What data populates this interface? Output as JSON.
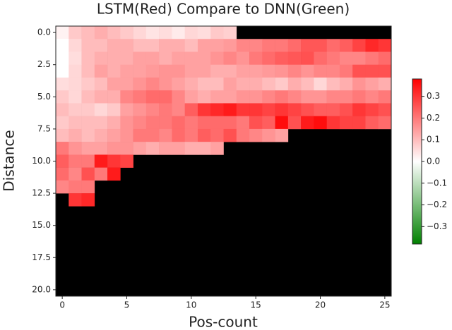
{
  "chart_data": {
    "type": "heatmap",
    "title": "LSTM(Red) Compare to DNN(Green)",
    "xlabel": "Pos-count",
    "ylabel": "Distance",
    "x": [
      0,
      1,
      2,
      3,
      4,
      5,
      6,
      7,
      8,
      9,
      10,
      11,
      12,
      13,
      14,
      15,
      16,
      17,
      18,
      19,
      20,
      21,
      22,
      23,
      24,
      25
    ],
    "y": [
      0,
      1,
      2,
      3,
      4,
      5,
      6,
      7,
      8,
      9,
      10,
      11,
      12,
      13,
      14,
      15,
      16,
      17,
      18,
      19,
      20
    ],
    "xlim": [
      -0.5,
      25.5
    ],
    "ylim": [
      20.5,
      -0.5
    ],
    "xticks": [
      0,
      5,
      10,
      15,
      20,
      25
    ],
    "yticks": [
      {
        "value": 0,
        "label": "0.0"
      },
      2.5,
      {
        "value": 5,
        "label": "5.0"
      },
      7.5,
      {
        "value": 10,
        "label": "10.0"
      },
      12.5,
      {
        "value": 15,
        "label": "15.0"
      },
      17.5,
      {
        "value": 20,
        "label": "20.0"
      }
    ],
    "clim": [
      -0.38,
      0.38
    ],
    "cticks": [
      0.3,
      0.2,
      0.1,
      {
        "value": 0,
        "label": "0.0"
      },
      {
        "value": -0.1,
        "label": "−0.1"
      },
      {
        "value": -0.2,
        "label": "−0.2"
      },
      {
        "value": -0.3,
        "label": "−0.3"
      }
    ],
    "positive_color": "#ff0000",
    "negative_color": "#008000",
    "missing_color": "#000000",
    "values": [
      [
        0.02,
        0.08,
        0.1,
        0.12,
        0.1,
        0.08,
        0.06,
        0.04,
        0.05,
        0.03,
        0.06,
        0.05,
        0.08,
        0.07,
        null,
        null,
        null,
        null,
        null,
        null,
        null,
        null,
        null,
        null,
        null,
        null
      ],
      [
        0.0,
        0.06,
        0.1,
        0.1,
        0.12,
        0.12,
        0.1,
        0.1,
        0.12,
        0.12,
        0.1,
        0.14,
        0.14,
        0.15,
        0.18,
        0.18,
        0.2,
        0.2,
        0.22,
        0.25,
        0.25,
        0.22,
        0.24,
        0.28,
        0.32,
        0.3
      ],
      [
        0.0,
        0.05,
        0.1,
        0.12,
        0.12,
        0.12,
        0.14,
        0.14,
        0.12,
        0.14,
        0.14,
        0.14,
        0.16,
        0.18,
        0.16,
        0.2,
        0.22,
        0.24,
        0.25,
        0.26,
        0.22,
        0.2,
        0.18,
        0.18,
        0.2,
        0.22
      ],
      [
        0.0,
        0.06,
        0.1,
        0.14,
        0.12,
        0.14,
        0.14,
        0.15,
        0.16,
        0.16,
        0.14,
        0.14,
        0.12,
        0.12,
        0.14,
        0.14,
        0.15,
        0.16,
        0.18,
        0.16,
        0.18,
        0.18,
        0.2,
        0.26,
        0.26,
        0.26
      ],
      [
        0.05,
        0.06,
        0.08,
        0.1,
        0.14,
        0.14,
        0.16,
        0.18,
        0.16,
        0.14,
        0.12,
        0.1,
        0.1,
        0.14,
        0.12,
        0.12,
        0.1,
        0.08,
        0.12,
        0.1,
        0.06,
        0.1,
        0.12,
        0.16,
        0.14,
        0.12
      ],
      [
        0.08,
        0.06,
        0.1,
        0.12,
        0.12,
        0.18,
        0.2,
        0.22,
        0.22,
        0.18,
        0.14,
        0.12,
        0.14,
        0.14,
        0.16,
        0.16,
        0.18,
        0.2,
        0.18,
        0.16,
        0.16,
        0.18,
        0.18,
        0.2,
        0.18,
        0.2
      ],
      [
        0.1,
        0.08,
        0.08,
        0.06,
        0.08,
        0.14,
        0.16,
        0.18,
        0.2,
        0.18,
        0.24,
        0.3,
        0.32,
        0.34,
        0.3,
        0.3,
        0.28,
        0.3,
        0.28,
        0.26,
        0.24,
        0.24,
        0.26,
        0.3,
        0.28,
        0.26
      ],
      [
        0.08,
        0.1,
        0.1,
        0.1,
        0.12,
        0.16,
        0.18,
        0.2,
        0.2,
        0.22,
        0.2,
        0.22,
        0.22,
        0.22,
        0.2,
        0.26,
        0.24,
        0.36,
        0.26,
        0.34,
        0.36,
        0.3,
        0.28,
        0.28,
        0.24,
        0.22
      ],
      [
        0.1,
        0.12,
        0.1,
        0.12,
        0.14,
        0.16,
        0.2,
        0.2,
        0.18,
        0.22,
        0.2,
        0.24,
        0.22,
        0.26,
        0.2,
        0.18,
        0.16,
        0.14,
        null,
        null,
        null,
        null,
        null,
        null,
        null,
        null
      ],
      [
        0.2,
        0.16,
        0.14,
        0.14,
        0.16,
        0.16,
        0.14,
        0.12,
        0.14,
        0.14,
        0.12,
        0.12,
        0.14,
        null,
        null,
        null,
        null,
        null,
        null,
        null,
        null,
        null,
        null,
        null,
        null,
        null
      ],
      [
        0.24,
        0.2,
        0.2,
        0.34,
        0.3,
        0.28,
        null,
        null,
        null,
        null,
        null,
        null,
        null,
        null,
        null,
        null,
        null,
        null,
        null,
        null,
        null,
        null,
        null,
        null,
        null,
        null
      ],
      [
        0.22,
        0.18,
        0.26,
        0.2,
        0.34,
        null,
        null,
        null,
        null,
        null,
        null,
        null,
        null,
        null,
        null,
        null,
        null,
        null,
        null,
        null,
        null,
        null,
        null,
        null,
        null,
        null
      ],
      [
        0.18,
        0.2,
        0.2,
        null,
        null,
        null,
        null,
        null,
        null,
        null,
        null,
        null,
        null,
        null,
        null,
        null,
        null,
        null,
        null,
        null,
        null,
        null,
        null,
        null,
        null,
        null
      ],
      [
        null,
        0.3,
        0.32,
        null,
        null,
        null,
        null,
        null,
        null,
        null,
        null,
        null,
        null,
        null,
        null,
        null,
        null,
        null,
        null,
        null,
        null,
        null,
        null,
        null,
        null,
        null
      ],
      [
        null,
        null,
        null,
        null,
        null,
        null,
        null,
        null,
        null,
        null,
        null,
        null,
        null,
        null,
        null,
        null,
        null,
        null,
        null,
        null,
        null,
        null,
        null,
        null,
        null,
        null
      ],
      [
        null,
        null,
        null,
        null,
        null,
        null,
        null,
        null,
        null,
        null,
        null,
        null,
        null,
        null,
        null,
        null,
        null,
        null,
        null,
        null,
        null,
        null,
        null,
        null,
        null,
        null
      ],
      [
        null,
        null,
        null,
        null,
        null,
        null,
        null,
        null,
        null,
        null,
        null,
        null,
        null,
        null,
        null,
        null,
        null,
        null,
        null,
        null,
        null,
        null,
        null,
        null,
        null,
        null
      ],
      [
        null,
        null,
        null,
        null,
        null,
        null,
        null,
        null,
        null,
        null,
        null,
        null,
        null,
        null,
        null,
        null,
        null,
        null,
        null,
        null,
        null,
        null,
        null,
        null,
        null,
        null
      ],
      [
        null,
        null,
        null,
        null,
        null,
        null,
        null,
        null,
        null,
        null,
        null,
        null,
        null,
        null,
        null,
        null,
        null,
        null,
        null,
        null,
        null,
        null,
        null,
        null,
        null,
        null
      ],
      [
        null,
        null,
        null,
        null,
        null,
        null,
        null,
        null,
        null,
        null,
        null,
        null,
        null,
        null,
        null,
        null,
        null,
        null,
        null,
        null,
        null,
        null,
        null,
        null,
        null,
        null
      ],
      [
        null,
        null,
        null,
        null,
        null,
        null,
        null,
        null,
        null,
        null,
        null,
        null,
        null,
        null,
        null,
        null,
        null,
        null,
        null,
        null,
        null,
        null,
        null,
        null,
        null,
        null
      ]
    ]
  }
}
